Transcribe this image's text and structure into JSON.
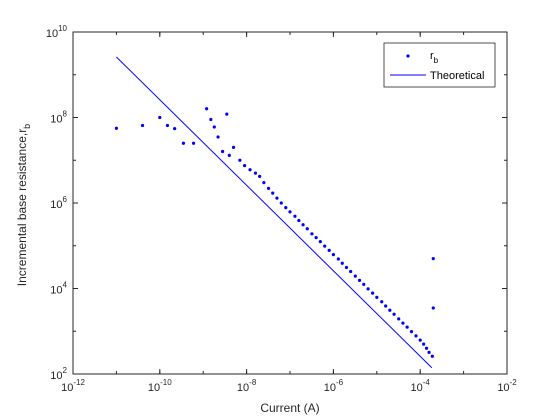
{
  "chart_data": {
    "type": "scatter",
    "xlabel": "Current (A)",
    "ylabel": "Incremental base resistance,r",
    "ylabel_subscript": "b",
    "x_scale": "log",
    "y_scale": "log",
    "xlim": [
      1e-12,
      0.01
    ],
    "ylim": [
      100,
      10000000000.0
    ],
    "x_ticks": [
      {
        "value": 1e-12,
        "base": "10",
        "exp": "-12"
      },
      {
        "value": 1e-10,
        "base": "10",
        "exp": "-10"
      },
      {
        "value": 1e-08,
        "base": "10",
        "exp": "-8"
      },
      {
        "value": 1e-06,
        "base": "10",
        "exp": "-6"
      },
      {
        "value": 0.0001,
        "base": "10",
        "exp": "-4"
      },
      {
        "value": 0.01,
        "base": "10",
        "exp": "-2"
      }
    ],
    "y_ticks": [
      {
        "value": 100,
        "base": "10",
        "exp": "2"
      },
      {
        "value": 10000,
        "base": "10",
        "exp": "4"
      },
      {
        "value": 1000000,
        "base": "10",
        "exp": "6"
      },
      {
        "value": 100000000,
        "base": "10",
        "exp": "8"
      },
      {
        "value": 10000000000,
        "base": "10",
        "exp": "10"
      }
    ],
    "grid": false,
    "legend_position": "top-right",
    "series": [
      {
        "name": "r",
        "name_subscript": "b",
        "kind": "markers",
        "color": "#0000ff",
        "points": [
          [
            1e-11,
            56000000.0
          ],
          [
            4e-11,
            65000000.0
          ],
          [
            1e-10,
            100000000.0
          ],
          [
            1.5e-10,
            65000000.0
          ],
          [
            2.2e-10,
            55000000.0
          ],
          [
            3.5e-10,
            25000000.0
          ],
          [
            6e-10,
            25000000.0
          ],
          [
            1.2e-09,
            160000000.0
          ],
          [
            1.5e-09,
            90000000.0
          ],
          [
            1.8e-09,
            60000000.0
          ],
          [
            2.2e-09,
            35000000.0
          ],
          [
            2.8e-09,
            16000000.0
          ],
          [
            3.5e-09,
            120000000.0
          ],
          [
            4e-09,
            13000000.0
          ],
          [
            5e-09,
            20000000.0
          ],
          [
            7e-09,
            10000000.0
          ],
          [
            9e-09,
            7500000.0
          ],
          [
            1.2e-08,
            6000000.0
          ],
          [
            1.6e-08,
            5000000.0
          ],
          [
            2e-08,
            4200000.0
          ],
          [
            2.5e-08,
            3000000.0
          ],
          [
            3.2e-08,
            2200000.0
          ],
          [
            4e-08,
            1700000.0
          ],
          [
            5e-08,
            1300000.0
          ],
          [
            6.3e-08,
            1000000.0
          ],
          [
            8e-08,
            780000.0
          ],
          [
            1e-07,
            620000.0
          ],
          [
            1.3e-07,
            490000.0
          ],
          [
            1.6e-07,
            390000.0
          ],
          [
            2e-07,
            310000.0
          ],
          [
            2.5e-07,
            250000.0
          ],
          [
            3.2e-07,
            190000.0
          ],
          [
            4e-07,
            155000.0
          ],
          [
            5e-07,
            125000.0
          ],
          [
            6.3e-07,
            98000.0
          ],
          [
            8e-07,
            78000.0
          ],
          [
            1e-06,
            62000.0
          ],
          [
            1.3e-06,
            49000.0
          ],
          [
            1.6e-06,
            39000.0
          ],
          [
            2e-06,
            31000.0
          ],
          [
            2.5e-06,
            25000.0
          ],
          [
            3.2e-06,
            19500.0
          ],
          [
            4e-06,
            15500.0
          ],
          [
            5e-06,
            12500.0
          ],
          [
            6.3e-06,
            9800.0
          ],
          [
            8e-06,
            7800.0
          ],
          [
            1e-05,
            6200.0
          ],
          [
            1.3e-05,
            4900.0
          ],
          [
            1.6e-05,
            3900.0
          ],
          [
            2e-05,
            3100.0
          ],
          [
            2.5e-05,
            2500.0
          ],
          [
            3.2e-05,
            1950.0
          ],
          [
            4e-05,
            1550.0
          ],
          [
            5e-05,
            1250.0
          ],
          [
            6.3e-05,
            980.0
          ],
          [
            8e-05,
            780.0
          ],
          [
            0.0001,
            620.0
          ],
          [
            0.00012,
            500.0
          ],
          [
            0.00014,
            400.0
          ],
          [
            0.00016,
            320.0
          ],
          [
            0.00019,
            260.0
          ],
          [
            0.0002,
            50000.0
          ],
          [
            0.0002,
            3500.0
          ]
        ]
      },
      {
        "name": "Theoretical",
        "kind": "line",
        "color": "#0000ff",
        "points": [
          [
            1e-11,
            2600000000.0
          ],
          [
            0.000185,
            140.0
          ]
        ]
      }
    ]
  }
}
